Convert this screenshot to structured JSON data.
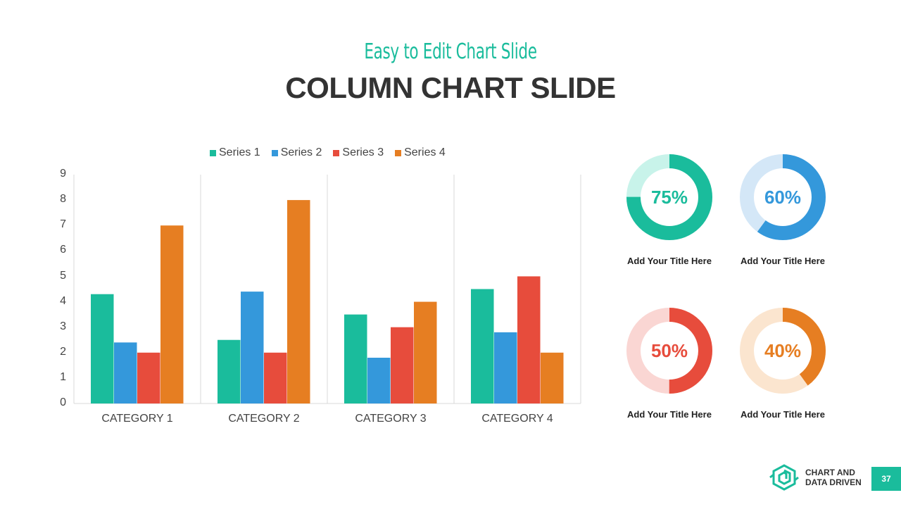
{
  "header": {
    "subtitle": "Easy to Edit Chart Slide",
    "title": "COLUMN CHART SLIDE"
  },
  "colors": {
    "accent": "#1abc9c",
    "series1": "#1abc9c",
    "series2": "#3498db",
    "series3": "#e74c3c",
    "series4": "#e67e22"
  },
  "legend": [
    {
      "label": "Series 1",
      "color": "#1abc9c"
    },
    {
      "label": "Series 2",
      "color": "#3498db"
    },
    {
      "label": "Series 3",
      "color": "#e74c3c"
    },
    {
      "label": "Series 4",
      "color": "#e67e22"
    }
  ],
  "chart_data": [
    {
      "type": "bar",
      "title": "",
      "xlabel": "",
      "ylabel": "",
      "categories": [
        "CATEGORY 1",
        "CATEGORY 2",
        "CATEGORY 3",
        "CATEGORY 4"
      ],
      "series": [
        {
          "name": "Series 1",
          "color": "#1abc9c",
          "values": [
            4.3,
            2.5,
            3.5,
            4.5
          ]
        },
        {
          "name": "Series 2",
          "color": "#3498db",
          "values": [
            2.4,
            4.4,
            1.8,
            2.8
          ]
        },
        {
          "name": "Series 3",
          "color": "#e74c3c",
          "values": [
            2,
            2,
            3,
            5
          ]
        },
        {
          "name": "Series 4",
          "color": "#e67e22",
          "values": [
            7,
            8,
            4,
            2
          ]
        }
      ],
      "yticks": [
        "0",
        "1",
        "2",
        "3",
        "4",
        "5",
        "6",
        "7",
        "8",
        "9"
      ],
      "ylim": [
        0,
        9
      ],
      "grid": "vertical category separators",
      "legend_position": "top"
    },
    {
      "type": "pie",
      "subtype": "donut",
      "items": [
        {
          "value": 75,
          "label": "75%",
          "title": "Add Your Title Here",
          "color": "#1abc9c",
          "track": "#c8f3ea"
        },
        {
          "value": 60,
          "label": "60%",
          "title": "Add Your Title Here",
          "color": "#3498db",
          "track": "#d4e7f7"
        },
        {
          "value": 50,
          "label": "50%",
          "title": "Add Your Title Here",
          "color": "#e74c3c",
          "track": "#fad6d3"
        },
        {
          "value": 40,
          "label": "40%",
          "title": "Add Your Title Here",
          "color": "#e67e22",
          "track": "#fbe5cf"
        }
      ]
    }
  ],
  "footer": {
    "brand_line1": "CHART AND",
    "brand_line2": "DATA DRIVEN",
    "page_number": "37"
  }
}
